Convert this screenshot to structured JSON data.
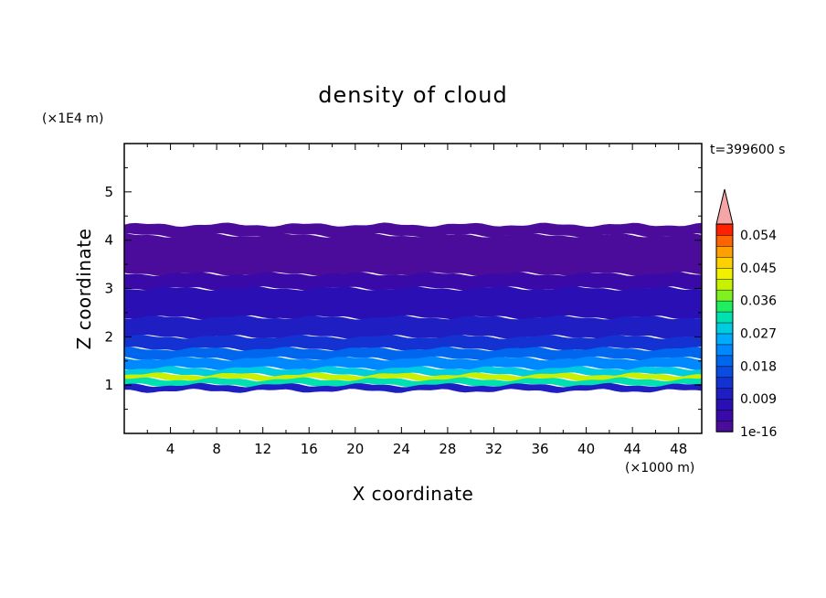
{
  "chart_data": {
    "type": "heatmap",
    "title": "density of cloud",
    "xlabel": "X coordinate",
    "ylabel": "Z coordinate",
    "x_units": "(×1000 m)",
    "y_units": "(×1E4 m)",
    "time_label": "t=399600 s",
    "xlim": [
      0,
      50
    ],
    "ylim": [
      0,
      6
    ],
    "x_ticks": [
      "4",
      "8",
      "12",
      "16",
      "20",
      "24",
      "28",
      "32",
      "36",
      "40",
      "44",
      "48"
    ],
    "x_tick_values": [
      4,
      8,
      12,
      16,
      20,
      24,
      28,
      32,
      36,
      40,
      44,
      48
    ],
    "y_ticks": [
      "1",
      "2",
      "3",
      "4",
      "5"
    ],
    "y_tick_values": [
      1,
      2,
      3,
      4,
      5
    ],
    "colorbar": {
      "labels": [
        "1e-16",
        "0.009",
        "0.018",
        "0.027",
        "0.036",
        "0.045",
        "0.054"
      ],
      "levels": 19,
      "extend": "max",
      "colors": [
        "#4b0c9b",
        "#3a0aa8",
        "#2a10b4",
        "#1e1ec2",
        "#1432d2",
        "#0a4be0",
        "#0066ee",
        "#0088ff",
        "#00aaff",
        "#00cce0",
        "#00e0b0",
        "#20ee60",
        "#80f020",
        "#c8f000",
        "#f0f000",
        "#ffd000",
        "#ffa000",
        "#ff6400",
        "#ff2000"
      ],
      "over_color": "#f4a6a6"
    },
    "cloud_layers": [
      {
        "zmin": 0.88,
        "zmax": 1.0,
        "level": 3
      },
      {
        "zmin": 1.0,
        "zmax": 1.12,
        "level": 10
      },
      {
        "zmin": 1.12,
        "zmax": 1.22,
        "level": 13
      },
      {
        "zmin": 1.22,
        "zmax": 1.35,
        "level": 9
      },
      {
        "zmin": 1.35,
        "zmax": 1.55,
        "level": 7
      },
      {
        "zmin": 1.55,
        "zmax": 1.75,
        "level": 6
      },
      {
        "zmin": 1.75,
        "zmax": 2.0,
        "level": 4
      },
      {
        "zmin": 2.0,
        "zmax": 2.4,
        "level": 3
      },
      {
        "zmin": 2.4,
        "zmax": 3.0,
        "level": 2
      },
      {
        "zmin": 3.0,
        "zmax": 3.3,
        "level": 1
      },
      {
        "zmin": 3.3,
        "zmax": 4.1,
        "level": 0
      },
      {
        "zmin": 4.1,
        "zmax": 4.32,
        "level": 0
      }
    ]
  }
}
